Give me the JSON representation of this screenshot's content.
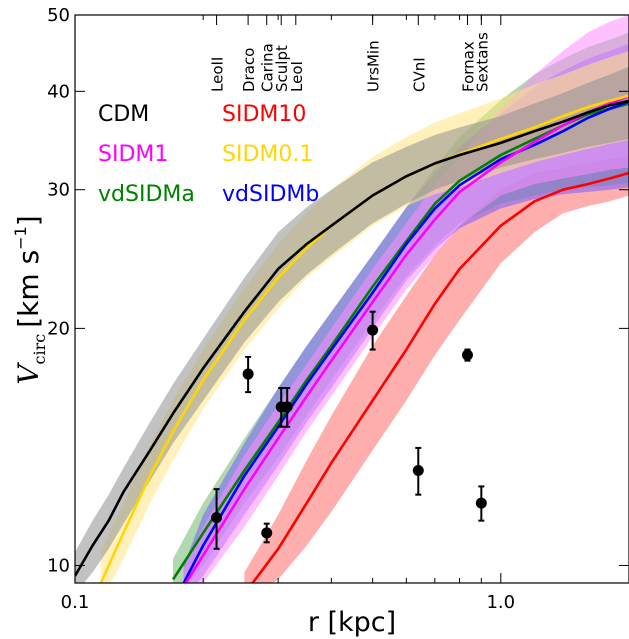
{
  "chart_data": {
    "type": "line",
    "xlabel": "r [kpc]",
    "ylabel_main": "V",
    "ylabel_sub": "circ",
    "ylabel_units": "[km s",
    "ylabel_exp": "−1",
    "ylabel_close": "]",
    "xscale": "log",
    "yscale": "log",
    "xlim": [
      0.1,
      2.0
    ],
    "ylim": [
      9.5,
      50
    ],
    "xticks": [
      {
        "v": 0.1,
        "label": "0.1"
      },
      {
        "v": 1.0,
        "label": "1.0"
      }
    ],
    "yticks": [
      {
        "v": 10,
        "label": "10"
      },
      {
        "v": 20,
        "label": "20"
      },
      {
        "v": 30,
        "label": "30"
      },
      {
        "v": 40,
        "label": "40"
      },
      {
        "v": 50,
        "label": "50"
      }
    ],
    "grid": false,
    "galaxy_labels": [
      {
        "r": 0.215,
        "label": "LeoII"
      },
      {
        "r": 0.255,
        "label": "Draco"
      },
      {
        "r": 0.282,
        "label": "Carina"
      },
      {
        "r": 0.305,
        "label": "Sculpt"
      },
      {
        "r": 0.33,
        "label": "LeoI"
      },
      {
        "r": 0.5,
        "label": "UrsMin"
      },
      {
        "r": 0.64,
        "label": "CVnI"
      },
      {
        "r": 0.835,
        "label": "Fornax"
      },
      {
        "r": 0.9,
        "label": "Sextans"
      }
    ],
    "legend": [
      {
        "label": "CDM",
        "color": "#000000",
        "col": 0,
        "row": 0
      },
      {
        "label": "SIDM10",
        "color": "#ff0000",
        "col": 1,
        "row": 0
      },
      {
        "label": "SIDM1",
        "color": "#ff00ff",
        "col": 0,
        "row": 1
      },
      {
        "label": "SIDM0.1",
        "color": "#ffd700",
        "col": 1,
        "row": 1
      },
      {
        "label": "vdSIDMa",
        "color": "#008000",
        "col": 0,
        "row": 2
      },
      {
        "label": "vdSIDMb",
        "color": "#0000ff",
        "col": 1,
        "row": 2
      }
    ],
    "series": [
      {
        "name": "SIDM10",
        "color": "#ff0000",
        "band_color": "#ff6b6b",
        "x": [
          0.25,
          0.3,
          0.35,
          0.4,
          0.5,
          0.6,
          0.7,
          0.8,
          1.0,
          1.2,
          1.4,
          1.6,
          1.8,
          2.0
        ],
        "y": [
          9.2,
          10.5,
          12.0,
          13.5,
          16.2,
          18.8,
          21.5,
          23.8,
          27.0,
          29.0,
          30.0,
          30.5,
          31.0,
          31.5
        ],
        "lo": [
          9.0,
          9.6,
          10.6,
          11.7,
          14.0,
          16.2,
          18.5,
          20.5,
          24.2,
          26.5,
          28.0,
          28.6,
          29.0,
          29.5
        ],
        "hi": [
          9.8,
          11.6,
          13.6,
          15.5,
          19.0,
          22.0,
          24.8,
          27.0,
          30.0,
          31.5,
          32.0,
          32.4,
          32.8,
          33.2
        ]
      },
      {
        "name": "vdSIDMa",
        "color": "#008000",
        "band_color": "#6fb96f",
        "x": [
          0.17,
          0.2,
          0.25,
          0.3,
          0.35,
          0.4,
          0.5,
          0.6,
          0.7,
          0.8,
          1.0,
          1.2,
          1.4,
          1.6,
          1.8,
          2.0
        ],
        "y": [
          9.6,
          11.0,
          13.2,
          15.2,
          17.2,
          19.0,
          22.6,
          25.8,
          28.8,
          30.8,
          33.2,
          34.8,
          36.2,
          37.4,
          38.0,
          38.6
        ],
        "lo": [
          9.0,
          10.0,
          12.0,
          13.7,
          15.5,
          17.2,
          20.4,
          23.3,
          25.5,
          27.2,
          28.8,
          29.5,
          30.0,
          30.2,
          30.4,
          30.6
        ],
        "hi": [
          10.2,
          12.0,
          14.5,
          16.8,
          19.0,
          21.0,
          24.8,
          28.5,
          32.0,
          35.0,
          39.0,
          42.0,
          44.0,
          45.5,
          46.5,
          47.5
        ]
      },
      {
        "name": "vdSIDMb",
        "color": "#0000ff",
        "band_color": "#7c5cff",
        "x": [
          0.18,
          0.2,
          0.25,
          0.3,
          0.35,
          0.4,
          0.5,
          0.6,
          0.7,
          0.8,
          1.0,
          1.2,
          1.4,
          1.6,
          1.8,
          2.0
        ],
        "y": [
          9.5,
          10.6,
          13.0,
          15.0,
          17.0,
          18.8,
          22.2,
          25.6,
          28.4,
          30.4,
          32.8,
          34.2,
          35.6,
          37.0,
          38.0,
          38.8
        ],
        "lo": [
          9.0,
          9.7,
          11.6,
          13.4,
          15.2,
          16.8,
          20.0,
          23.0,
          25.2,
          26.8,
          28.4,
          29.2,
          29.6,
          29.8,
          30.0,
          30.2
        ],
        "hi": [
          10.0,
          11.6,
          14.3,
          16.8,
          19.0,
          21.0,
          24.8,
          28.5,
          31.5,
          34.0,
          37.5,
          40.5,
          42.5,
          44.0,
          45.0,
          46.0
        ]
      },
      {
        "name": "SIDM1",
        "color": "#ff00ff",
        "band_color": "#ff8cff",
        "x": [
          0.18,
          0.2,
          0.25,
          0.3,
          0.35,
          0.4,
          0.5,
          0.6,
          0.7,
          0.8,
          1.0,
          1.2,
          1.4,
          1.6,
          1.8,
          2.0
        ],
        "y": [
          9.4,
          10.3,
          12.5,
          14.5,
          16.4,
          18.2,
          21.6,
          24.8,
          27.5,
          29.8,
          32.5,
          34.5,
          36.2,
          37.6,
          38.6,
          39.4
        ],
        "lo": [
          9.0,
          9.5,
          11.2,
          13.0,
          14.8,
          16.4,
          19.5,
          22.4,
          24.8,
          27.0,
          29.5,
          30.5,
          31.0,
          31.4,
          31.8,
          32.0
        ],
        "hi": [
          9.9,
          11.2,
          13.8,
          16.0,
          18.0,
          20.0,
          23.8,
          27.2,
          30.5,
          33.0,
          38.0,
          42.0,
          45.0,
          47.5,
          49.0,
          50.0
        ]
      },
      {
        "name": "SIDM0.1",
        "color": "#ffd700",
        "band_color": "#ffe680",
        "x": [
          0.115,
          0.13,
          0.15,
          0.17,
          0.2,
          0.25,
          0.3,
          0.35,
          0.4,
          0.5,
          0.6,
          0.7,
          0.8,
          1.0,
          1.2,
          1.4,
          1.6,
          1.8,
          2.0
        ],
        "y": [
          9.5,
          11.0,
          13.0,
          14.8,
          17.2,
          20.5,
          23.2,
          25.3,
          27.0,
          29.5,
          31.2,
          32.4,
          33.3,
          34.8,
          36.0,
          37.2,
          38.2,
          38.9,
          39.5
        ],
        "lo": [
          9.0,
          10.2,
          12.0,
          13.6,
          15.8,
          18.8,
          21.2,
          23.2,
          24.6,
          27.0,
          28.6,
          29.6,
          30.2,
          31.5,
          32.5,
          33.2,
          33.8,
          34.3,
          34.7
        ],
        "hi": [
          10.4,
          12.0,
          14.2,
          16.2,
          18.8,
          22.5,
          25.6,
          28.0,
          30.0,
          33.0,
          35.0,
          36.5,
          37.5,
          39.2,
          40.8,
          42.0,
          43.2,
          44.2,
          45.0
        ]
      },
      {
        "name": "CDM",
        "color": "#000000",
        "band_color": "#8f8f8f",
        "x": [
          0.1,
          0.11,
          0.12,
          0.13,
          0.15,
          0.17,
          0.2,
          0.25,
          0.3,
          0.35,
          0.4,
          0.5,
          0.6,
          0.7,
          0.8,
          1.0,
          1.2,
          1.4,
          1.6,
          1.8,
          2.0
        ],
        "y": [
          9.7,
          10.6,
          11.4,
          12.4,
          14.0,
          15.6,
          17.8,
          21.0,
          23.8,
          25.6,
          27.0,
          29.5,
          31.2,
          32.4,
          33.2,
          34.4,
          35.6,
          36.6,
          37.6,
          38.4,
          38.9
        ],
        "lo": [
          9.2,
          9.8,
          10.5,
          11.3,
          12.8,
          14.3,
          16.2,
          19.2,
          21.6,
          23.4,
          24.8,
          27.2,
          28.8,
          30.0,
          30.8,
          32.0,
          32.8,
          33.4,
          34.0,
          34.4,
          34.8
        ],
        "hi": [
          10.4,
          11.4,
          12.3,
          13.3,
          15.2,
          17.0,
          19.4,
          23.2,
          26.5,
          28.5,
          30.0,
          32.5,
          34.0,
          35.2,
          36.0,
          37.2,
          38.6,
          39.8,
          41.0,
          42.0,
          43.0
        ]
      }
    ],
    "observations": [
      {
        "r": 0.215,
        "v": 11.5,
        "err": 1.0
      },
      {
        "r": 0.255,
        "v": 17.5,
        "err": 0.9
      },
      {
        "r": 0.282,
        "v": 11.0,
        "err": 0.3
      },
      {
        "r": 0.305,
        "v": 15.9,
        "err": 0.9
      },
      {
        "r": 0.315,
        "v": 15.9,
        "err": 0.9
      },
      {
        "r": 0.5,
        "v": 19.9,
        "err": 1.1
      },
      {
        "r": 0.64,
        "v": 13.2,
        "err": 0.9
      },
      {
        "r": 0.835,
        "v": 18.5,
        "err": 0.3
      },
      {
        "r": 0.9,
        "v": 12.0,
        "err": 0.6
      }
    ]
  }
}
